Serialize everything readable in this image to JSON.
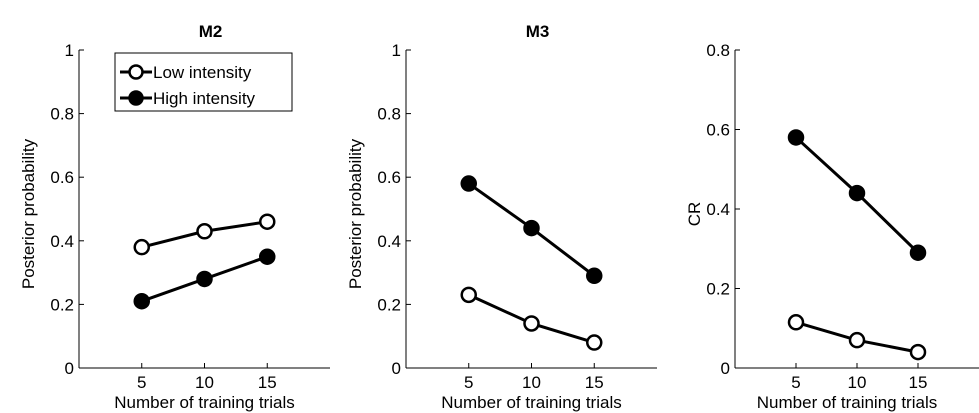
{
  "chart_data": [
    {
      "type": "line",
      "title": "M2",
      "xlabel": "Number of training trials",
      "ylabel": "Posterior probability",
      "x": [
        5,
        10,
        15
      ],
      "xlim": [
        0,
        20
      ],
      "ylim": [
        0,
        1
      ],
      "xticks": [
        "5",
        "10",
        "15"
      ],
      "yticks": [
        "0",
        "0.2",
        "0.4",
        "0.6",
        "0.8",
        "1"
      ],
      "legend": "top-left",
      "series": [
        {
          "name": "Low intensity",
          "values": [
            0.38,
            0.43,
            0.46
          ],
          "marker": "open-circle",
          "color": "#000000"
        },
        {
          "name": "High intensity",
          "values": [
            0.21,
            0.28,
            0.35
          ],
          "marker": "filled-circle",
          "color": "#000000"
        }
      ]
    },
    {
      "type": "line",
      "title": "M3",
      "xlabel": "Number of training trials",
      "ylabel": "Posterior probability",
      "x": [
        5,
        10,
        15
      ],
      "xlim": [
        0,
        20
      ],
      "ylim": [
        0,
        1
      ],
      "xticks": [
        "5",
        "10",
        "15"
      ],
      "yticks": [
        "0",
        "0.2",
        "0.4",
        "0.6",
        "0.8",
        "1"
      ],
      "series": [
        {
          "values": [
            0.23,
            0.14,
            0.08
          ],
          "marker": "open-circle",
          "color": "#000000"
        },
        {
          "values": [
            0.58,
            0.44,
            0.29
          ],
          "marker": "filled-circle",
          "color": "#000000"
        }
      ]
    },
    {
      "type": "line",
      "title": "",
      "xlabel": "Number of training trials",
      "ylabel": "CR",
      "x": [
        5,
        10,
        15
      ],
      "xlim": [
        0,
        20
      ],
      "ylim": [
        0,
        0.8
      ],
      "xticks": [
        "5",
        "10",
        "15"
      ],
      "yticks": [
        "0",
        "0.2",
        "0.4",
        "0.6",
        "0.8"
      ],
      "series": [
        {
          "values": [
            0.115,
            0.07,
            0.04
          ],
          "marker": "open-circle",
          "color": "#000000"
        },
        {
          "values": [
            0.58,
            0.44,
            0.29
          ],
          "marker": "filled-circle",
          "color": "#000000"
        }
      ]
    }
  ]
}
